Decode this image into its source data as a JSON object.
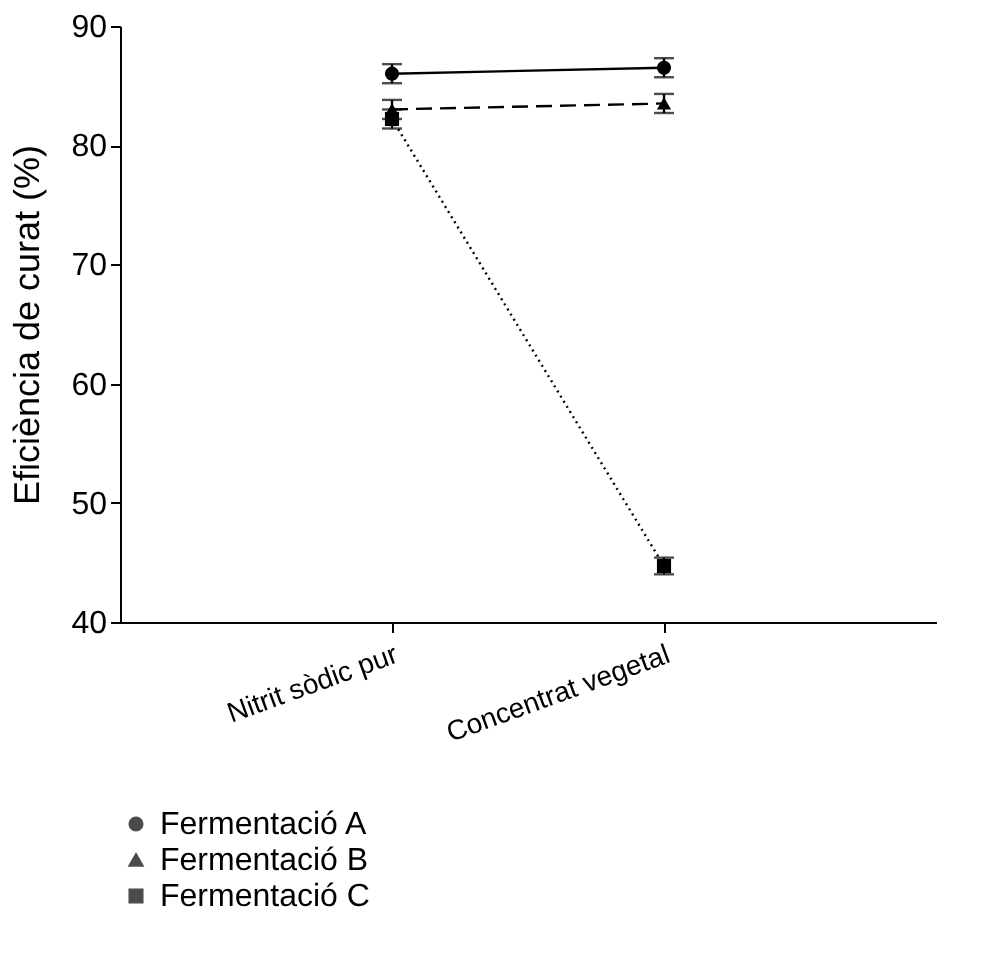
{
  "chart_data": {
    "type": "line",
    "ylabel": "Eficiència de curat (%)",
    "categories": [
      "Nitrit sòdic pur",
      "Concentrat vegetal"
    ],
    "ylim": [
      40,
      90
    ],
    "yticks": [
      40,
      50,
      60,
      70,
      80,
      90
    ],
    "grid": false,
    "legend": "bottom left",
    "series": [
      {
        "name": "Fermentació A",
        "color": "#000000",
        "values": [
          86.0,
          86.5
        ],
        "errors": [
          0.8,
          0.8
        ],
        "marker": "circle",
        "line_style": "solid"
      },
      {
        "name": "Fermentació B",
        "color": "#000000",
        "values": [
          83.0,
          83.5
        ],
        "errors": [
          0.8,
          0.8
        ],
        "marker": "triangle",
        "line_style": "dashed"
      },
      {
        "name": "Fermentació C",
        "color": "#000000",
        "values": [
          82.2,
          44.7
        ],
        "errors": [
          0.8,
          0.7
        ],
        "marker": "square",
        "line_style": "dotted"
      }
    ]
  }
}
